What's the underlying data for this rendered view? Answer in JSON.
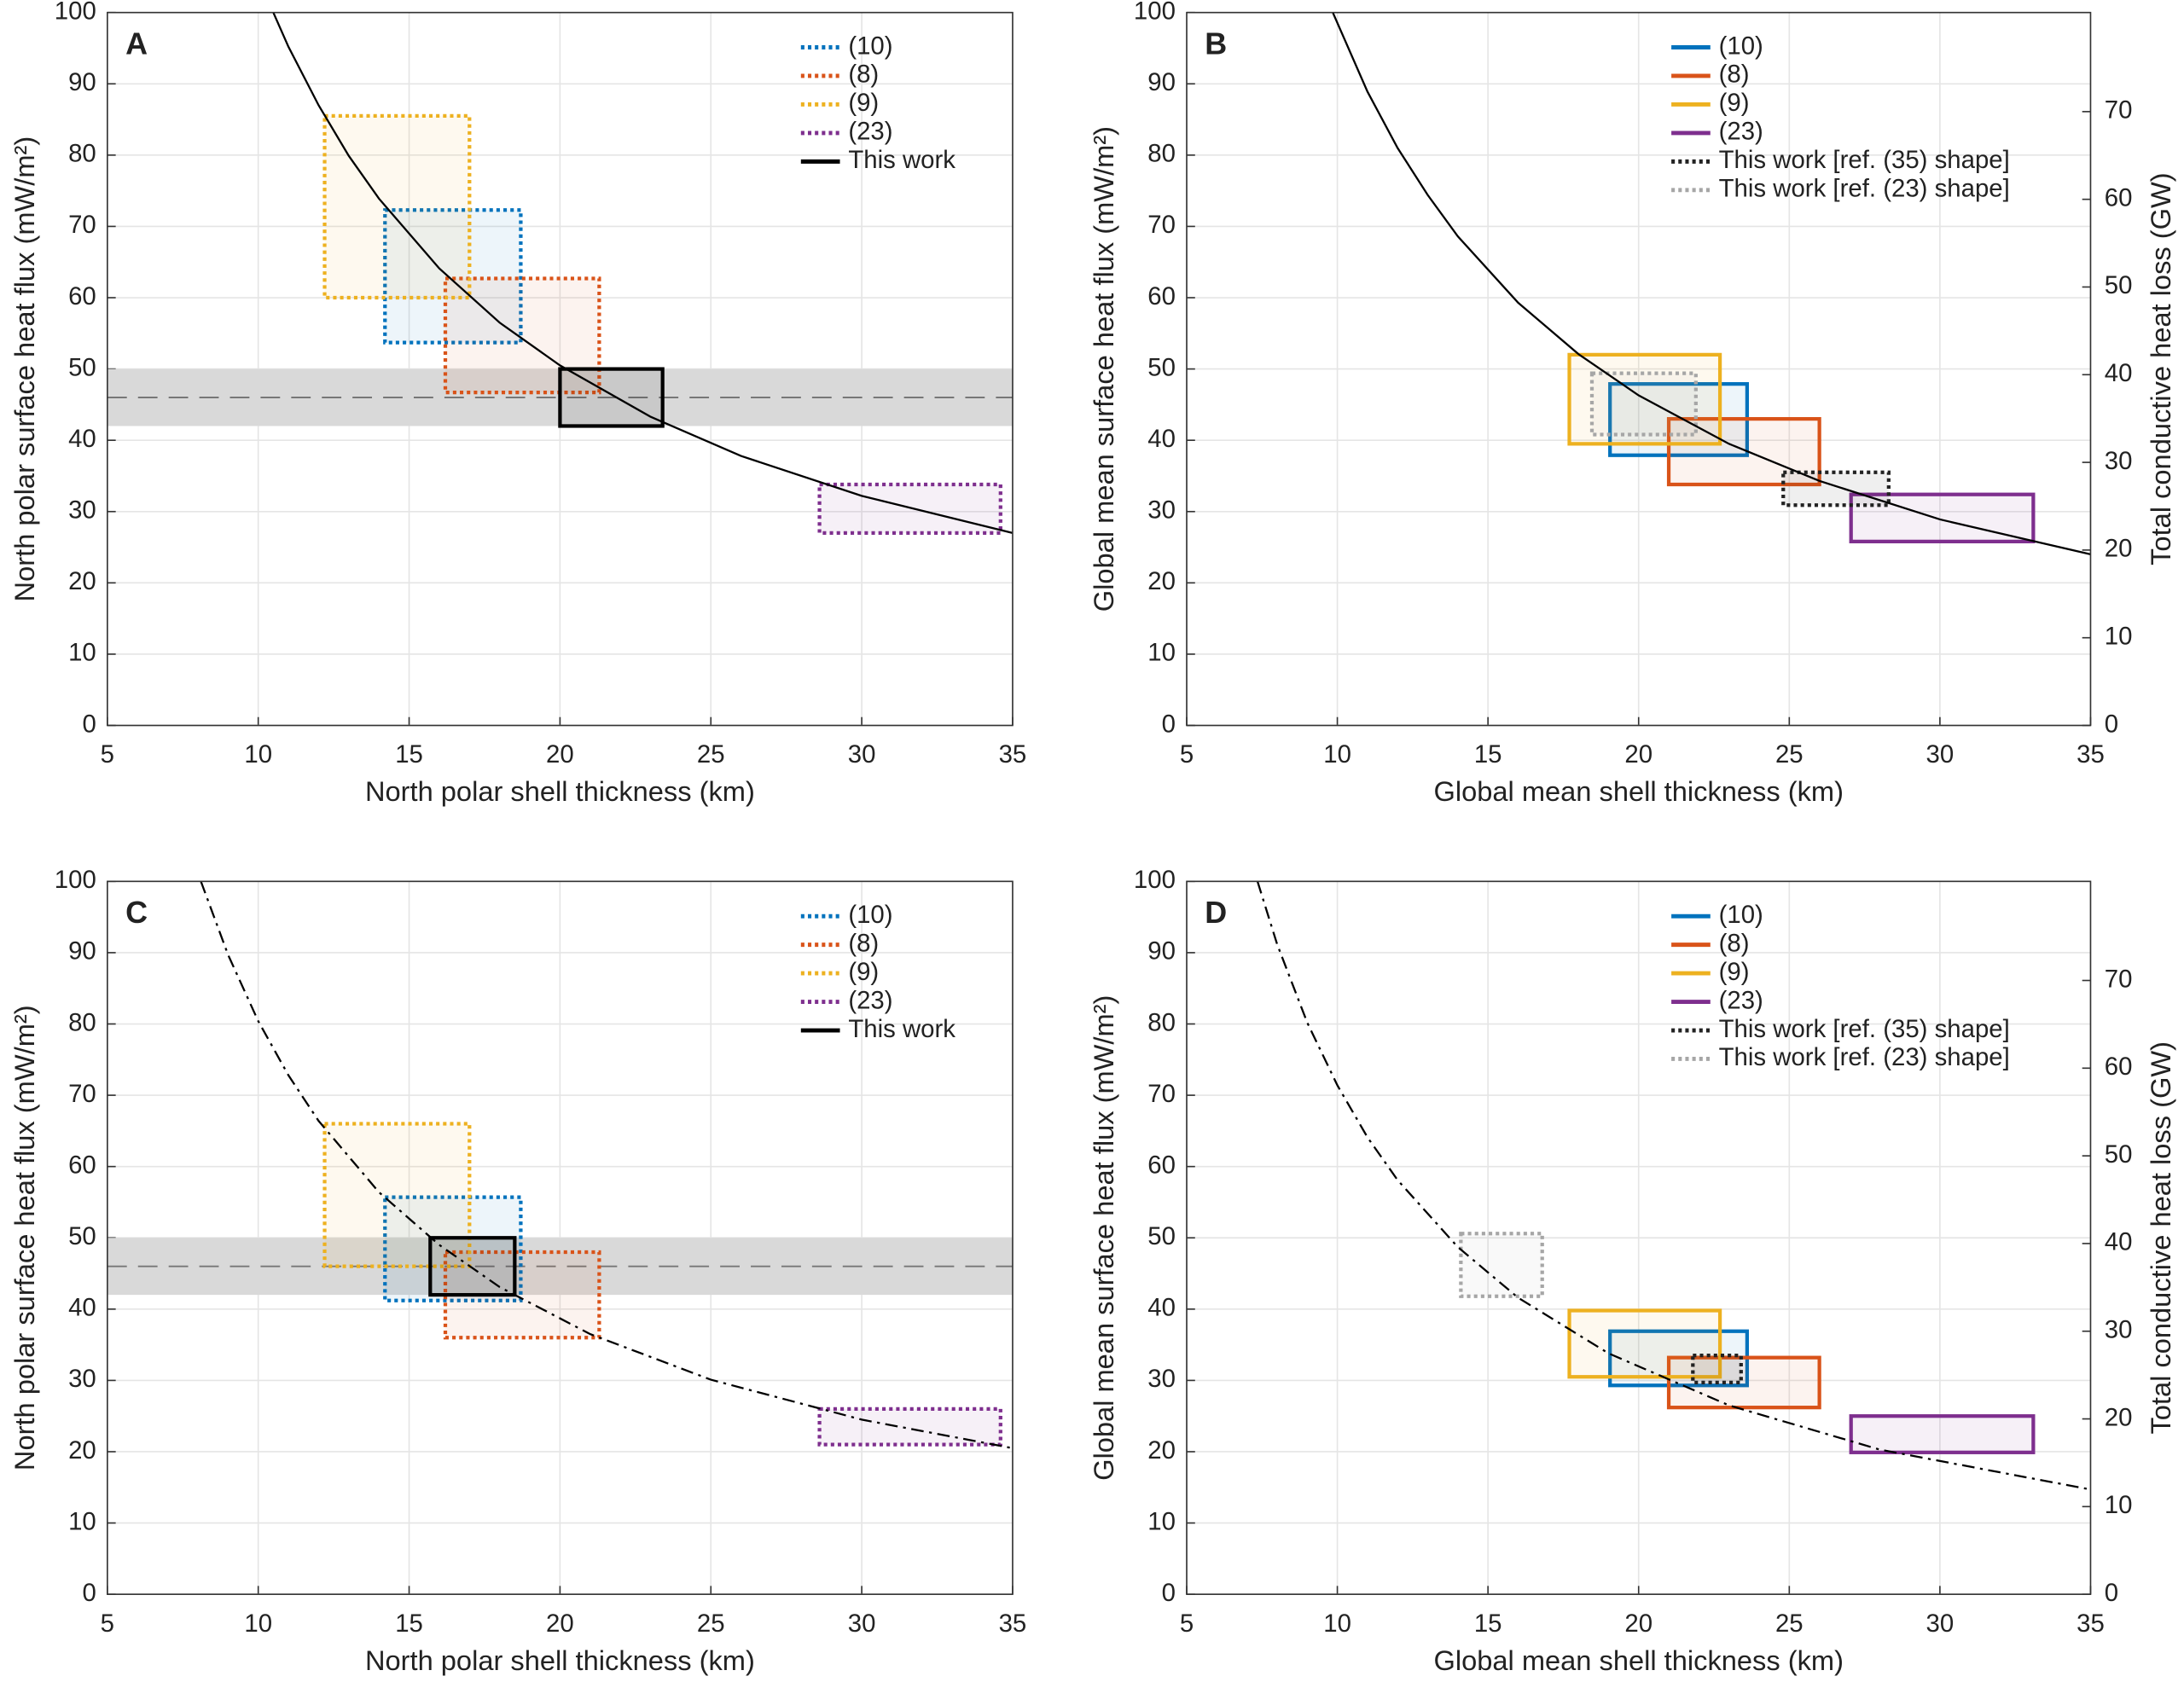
{
  "chart_data": [
    {
      "type": "rectangle",
      "panel_label": "A",
      "xlabel": "North polar shell thickness (km)",
      "ylabel": "North polar surface heat flux (mW/m²)",
      "xlim": [
        5,
        35
      ],
      "ylim": [
        0,
        100
      ],
      "xticks": [
        5,
        10,
        15,
        20,
        25,
        30,
        35
      ],
      "yticks": [
        0,
        10,
        20,
        30,
        40,
        50,
        60,
        70,
        80,
        90,
        100
      ],
      "grid": true,
      "band": {
        "range": [
          42,
          50
        ],
        "center": 46
      },
      "curve": {
        "style": "solid",
        "x": [
          10.5,
          11,
          12,
          13,
          14,
          16,
          18,
          20,
          23,
          26,
          30,
          35
        ],
        "y": [
          100.0,
          95.2,
          87.0,
          79.9,
          73.9,
          64.1,
          56.5,
          50.5,
          43.3,
          37.8,
          32.2,
          27.0
        ]
      },
      "series": [
        {
          "name": "(10)",
          "color": "#0072bd",
          "style": "dotted",
          "x": [
            14.2,
            18.7
          ],
          "y": [
            53.7,
            72.3
          ]
        },
        {
          "name": "(8)",
          "color": "#d95319",
          "style": "dotted",
          "x": [
            16.2,
            21.3
          ],
          "y": [
            46.7,
            62.7
          ]
        },
        {
          "name": "(9)",
          "color": "#edb120",
          "style": "dotted",
          "x": [
            12.2,
            17.0
          ],
          "y": [
            60.0,
            85.5
          ]
        },
        {
          "name": "(23)",
          "color": "#7e2f8e",
          "style": "dotted",
          "x": [
            28.6,
            34.6
          ],
          "y": [
            27.0,
            33.8
          ]
        },
        {
          "name": "This work",
          "color": "#000000",
          "style": "solid",
          "x": [
            20.0,
            23.4
          ],
          "y": [
            42,
            50
          ]
        }
      ]
    },
    {
      "type": "rectangle",
      "panel_label": "B",
      "xlabel": "Global mean shell thickness (km)",
      "ylabel": "Global mean surface heat flux (mW/m²)",
      "y2label": "Total conductive heat loss (GW)",
      "xlim": [
        5,
        35
      ],
      "ylim": [
        0,
        100
      ],
      "y2lim": [
        0,
        81.3
      ],
      "xticks": [
        5,
        10,
        15,
        20,
        25,
        30,
        35
      ],
      "yticks": [
        0,
        10,
        20,
        30,
        40,
        50,
        60,
        70,
        80,
        90,
        100
      ],
      "y2ticks": [
        0,
        10,
        20,
        30,
        40,
        50,
        60,
        70
      ],
      "grid": true,
      "curve": {
        "style": "solid",
        "x": [
          9.85,
          11,
          12,
          13,
          14,
          16,
          18,
          20,
          23,
          26,
          30,
          35
        ],
        "y": [
          100.0,
          88.9,
          81.0,
          74.4,
          68.6,
          59.3,
          52.1,
          46.3,
          39.5,
          34.3,
          28.9,
          24.0
        ]
      },
      "series": [
        {
          "name": "(10)",
          "color": "#0072bd",
          "style": "solid",
          "x": [
            19.05,
            23.6
          ],
          "y": [
            37.9,
            47.9
          ]
        },
        {
          "name": "(8)",
          "color": "#d95319",
          "style": "solid",
          "x": [
            21.0,
            26.0
          ],
          "y": [
            33.8,
            43.0
          ]
        },
        {
          "name": "(9)",
          "color": "#edb120",
          "style": "solid",
          "x": [
            17.7,
            22.7
          ],
          "y": [
            39.5,
            52.0
          ]
        },
        {
          "name": "(23)",
          "color": "#7e2f8e",
          "style": "solid",
          "x": [
            27.05,
            33.1
          ],
          "y": [
            25.8,
            32.4
          ]
        },
        {
          "name": "This work [ref. (35) shape]",
          "color": "#222222",
          "style": "dotted",
          "x": [
            24.8,
            28.3
          ],
          "y": [
            30.9,
            35.5
          ]
        },
        {
          "name": "This work [ref. (23) shape]",
          "color": "#a6a6a6",
          "style": "dotted",
          "x": [
            18.45,
            21.9
          ],
          "y": [
            40.8,
            49.4
          ]
        }
      ]
    },
    {
      "type": "rectangle",
      "panel_label": "C",
      "xlabel": "North polar shell thickness (km)",
      "ylabel": "North polar surface heat flux (mW/m²)",
      "xlim": [
        5,
        35
      ],
      "ylim": [
        0,
        100
      ],
      "xticks": [
        5,
        10,
        15,
        20,
        25,
        30,
        35
      ],
      "yticks": [
        0,
        10,
        20,
        30,
        40,
        50,
        60,
        70,
        80,
        90,
        100
      ],
      "grid": true,
      "band": {
        "range": [
          42,
          50
        ],
        "center": 46
      },
      "curve": {
        "style": "dashdot",
        "x": [
          8.1,
          9,
          10,
          11,
          12,
          14,
          16,
          18,
          21,
          25,
          30,
          35
        ],
        "y": [
          100.0,
          89.7,
          80.4,
          72.8,
          66.4,
          56.4,
          49.0,
          43.1,
          36.5,
          30.1,
          24.5,
          20.5
        ]
      },
      "series": [
        {
          "name": "(10)",
          "color": "#0072bd",
          "style": "dotted",
          "x": [
            14.2,
            18.7
          ],
          "y": [
            41.2,
            55.7
          ]
        },
        {
          "name": "(8)",
          "color": "#d95319",
          "style": "dotted",
          "x": [
            16.2,
            21.3
          ],
          "y": [
            36.0,
            48.0
          ]
        },
        {
          "name": "(9)",
          "color": "#edb120",
          "style": "dotted",
          "x": [
            12.2,
            17.0
          ],
          "y": [
            46.0,
            66.0
          ]
        },
        {
          "name": "(23)",
          "color": "#7e2f8e",
          "style": "dotted",
          "x": [
            28.6,
            34.6
          ],
          "y": [
            21.0,
            26.0
          ]
        },
        {
          "name": "This work",
          "color": "#000000",
          "style": "solid",
          "x": [
            15.7,
            18.5
          ],
          "y": [
            42,
            50
          ]
        }
      ]
    },
    {
      "type": "rectangle",
      "panel_label": "D",
      "xlabel": "Global mean shell thickness (km)",
      "ylabel": "Global mean surface heat flux (mW/m²)",
      "y2label": "Total conductive heat loss (GW)",
      "xlim": [
        5,
        35
      ],
      "ylim": [
        0,
        100
      ],
      "y2lim": [
        0,
        81.3
      ],
      "xticks": [
        5,
        10,
        15,
        20,
        25,
        30,
        35
      ],
      "yticks": [
        0,
        10,
        20,
        30,
        40,
        50,
        60,
        70,
        80,
        90,
        100
      ],
      "y2ticks": [
        0,
        10,
        20,
        30,
        40,
        50,
        60,
        70
      ],
      "grid": true,
      "curve": {
        "style": "dashdot",
        "x": [
          7.35,
          8,
          9,
          10,
          11,
          12,
          14,
          16,
          19,
          23,
          28,
          35
        ],
        "y": [
          100.0,
          91.2,
          80.2,
          71.4,
          64.1,
          58.1,
          48.7,
          41.6,
          33.8,
          26.5,
          20.3,
          14.7
        ]
      },
      "series": [
        {
          "name": "(10)",
          "color": "#0072bd",
          "style": "solid",
          "x": [
            19.05,
            23.6
          ],
          "y": [
            29.3,
            36.9
          ]
        },
        {
          "name": "(8)",
          "color": "#d95319",
          "style": "solid",
          "x": [
            21.0,
            26.0
          ],
          "y": [
            26.2,
            33.2
          ]
        },
        {
          "name": "(9)",
          "color": "#edb120",
          "style": "solid",
          "x": [
            17.7,
            22.7
          ],
          "y": [
            30.5,
            39.8
          ]
        },
        {
          "name": "(23)",
          "color": "#7e2f8e",
          "style": "solid",
          "x": [
            27.05,
            33.1
          ],
          "y": [
            19.9,
            25.0
          ]
        },
        {
          "name": "This work [ref. (35) shape]",
          "color": "#222222",
          "style": "dotted",
          "x": [
            21.8,
            23.4
          ],
          "y": [
            29.7,
            33.5
          ]
        },
        {
          "name": "This work [ref. (23) shape]",
          "color": "#a6a6a6",
          "style": "dotted",
          "x": [
            14.1,
            16.8
          ],
          "y": [
            41.8,
            50.6
          ]
        }
      ]
    }
  ]
}
